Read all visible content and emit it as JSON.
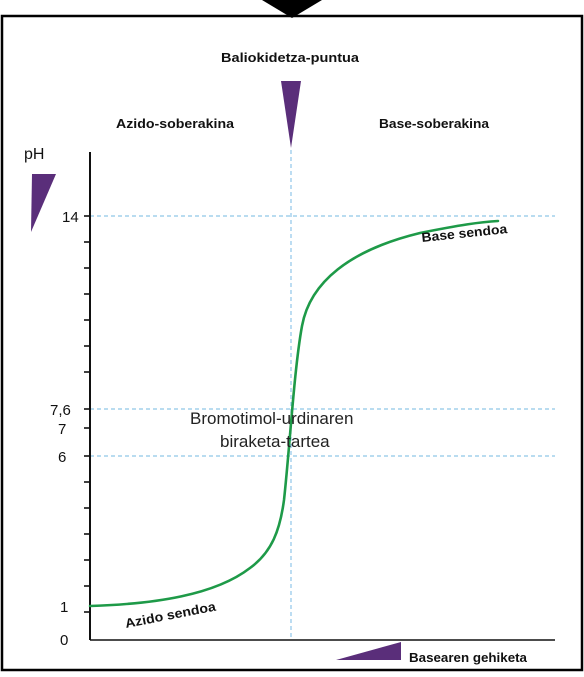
{
  "diagram": {
    "equivalence_point_label": "Baliokidetza-puntua",
    "acid_excess_label": "Azido-soberakina",
    "base_excess_label": "Base-soberakina",
    "y_axis_label": "pH",
    "y_tick_labels": [
      "14",
      "7,6",
      "7",
      "6",
      "1",
      "0"
    ],
    "indicator_range_line1": "Bromotimol-urdinaren",
    "indicator_range_line2": "biraketa-tartea",
    "strong_base_label": "Base sendoa",
    "strong_acid_label": "Azido sendoa",
    "x_axis_label": "Basearen gehiketa",
    "colors": {
      "curve": "#1e9a48",
      "guides": "#8fc6e8",
      "wedge": "#5a2e7a",
      "axis": "#111111",
      "frame": "#000000"
    },
    "icons": [
      "down-arrow-icon",
      "equivalence-wedge-icon",
      "ph-increase-wedge-icon",
      "base-addition-wedge-icon"
    ]
  }
}
